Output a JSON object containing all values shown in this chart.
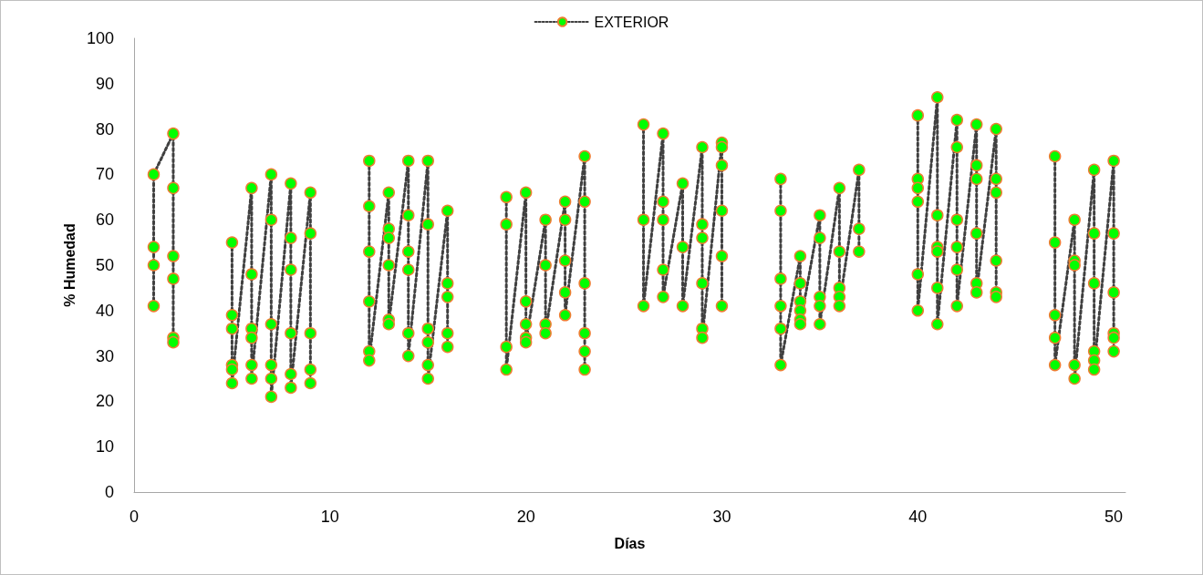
{
  "chart_data": {
    "type": "line",
    "xlabel": "Días",
    "ylabel": "% Humedad",
    "xlim": [
      0,
      50.6
    ],
    "xticks": [
      0,
      10,
      20,
      30,
      40,
      50
    ],
    "ylim": [
      0,
      100
    ],
    "yticks": [
      0,
      10,
      20,
      30,
      40,
      50,
      60,
      70,
      80,
      90,
      100
    ],
    "grid": false,
    "legend": "top",
    "marker": "circle",
    "line_style": "dotted",
    "series": [
      {
        "name": "EXTERIOR",
        "color": "#00ff00",
        "x": [
          1,
          1,
          1,
          1,
          2,
          2,
          2,
          2,
          2,
          2,
          3,
          5,
          5,
          5,
          5,
          5,
          5,
          6,
          6,
          6,
          6,
          6,
          6,
          7,
          7,
          7,
          7,
          7,
          7,
          8,
          8,
          8,
          8,
          8,
          8,
          9,
          9,
          9,
          9,
          9,
          10,
          12,
          12,
          12,
          12,
          12,
          12,
          13,
          13,
          13,
          13,
          13,
          13,
          14,
          14,
          14,
          14,
          14,
          14,
          15,
          15,
          15,
          15,
          15,
          15,
          16,
          16,
          16,
          16,
          16,
          17,
          19,
          19,
          19,
          19,
          20,
          20,
          20,
          20,
          20,
          21,
          21,
          21,
          21,
          22,
          22,
          22,
          22,
          22,
          23,
          23,
          23,
          23,
          23,
          23,
          24,
          26,
          26,
          26,
          27,
          27,
          27,
          27,
          27,
          28,
          28,
          28,
          29,
          29,
          29,
          29,
          29,
          29,
          30,
          30,
          30,
          30,
          30,
          30,
          31,
          33,
          33,
          33,
          33,
          33,
          33,
          34,
          34,
          34,
          34,
          34,
          34,
          35,
          35,
          35,
          35,
          35,
          36,
          36,
          36,
          36,
          36,
          37,
          37,
          37,
          38,
          40,
          40,
          40,
          40,
          40,
          40,
          41,
          41,
          41,
          41,
          41,
          41,
          42,
          42,
          42,
          42,
          42,
          42,
          43,
          43,
          43,
          43,
          43,
          43,
          44,
          44,
          44,
          44,
          44,
          44,
          45,
          47,
          47,
          47,
          47,
          47,
          48,
          48,
          48,
          48,
          48,
          49,
          49,
          49,
          49,
          49,
          49,
          50,
          50,
          50,
          50,
          50,
          50
        ],
        "values": [
          41,
          50,
          54,
          70,
          79,
          67,
          52,
          47,
          34,
          33,
          null,
          55,
          39,
          36,
          28,
          27,
          24,
          67,
          48,
          36,
          34,
          28,
          25,
          70,
          60,
          37,
          28,
          25,
          21,
          68,
          56,
          49,
          35,
          26,
          23,
          66,
          57,
          35,
          27,
          24,
          null,
          73,
          63,
          53,
          42,
          31,
          29,
          66,
          58,
          56,
          50,
          38,
          37,
          73,
          61,
          53,
          49,
          35,
          30,
          73,
          59,
          36,
          33,
          28,
          25,
          62,
          46,
          43,
          35,
          32,
          null,
          65,
          59,
          32,
          27,
          66,
          42,
          37,
          34,
          33,
          60,
          50,
          37,
          35,
          64,
          60,
          51,
          44,
          39,
          74,
          64,
          46,
          35,
          31,
          27,
          null,
          81,
          60,
          41,
          79,
          64,
          60,
          49,
          43,
          68,
          54,
          41,
          76,
          59,
          56,
          46,
          36,
          34,
          77,
          76,
          72,
          62,
          52,
          41,
          null,
          69,
          62,
          47,
          41,
          36,
          28,
          52,
          46,
          42,
          40,
          38,
          37,
          61,
          56,
          43,
          41,
          37,
          67,
          53,
          45,
          43,
          41,
          71,
          58,
          53,
          null,
          83,
          69,
          67,
          64,
          48,
          40,
          87,
          61,
          54,
          53,
          45,
          37,
          82,
          76,
          60,
          54,
          49,
          41,
          81,
          72,
          69,
          57,
          46,
          44,
          80,
          69,
          66,
          51,
          44,
          43,
          null,
          74,
          55,
          39,
          34,
          28,
          60,
          51,
          50,
          28,
          25,
          71,
          57,
          46,
          31,
          29,
          27,
          73,
          57,
          44,
          35,
          34,
          31
        ]
      }
    ]
  }
}
